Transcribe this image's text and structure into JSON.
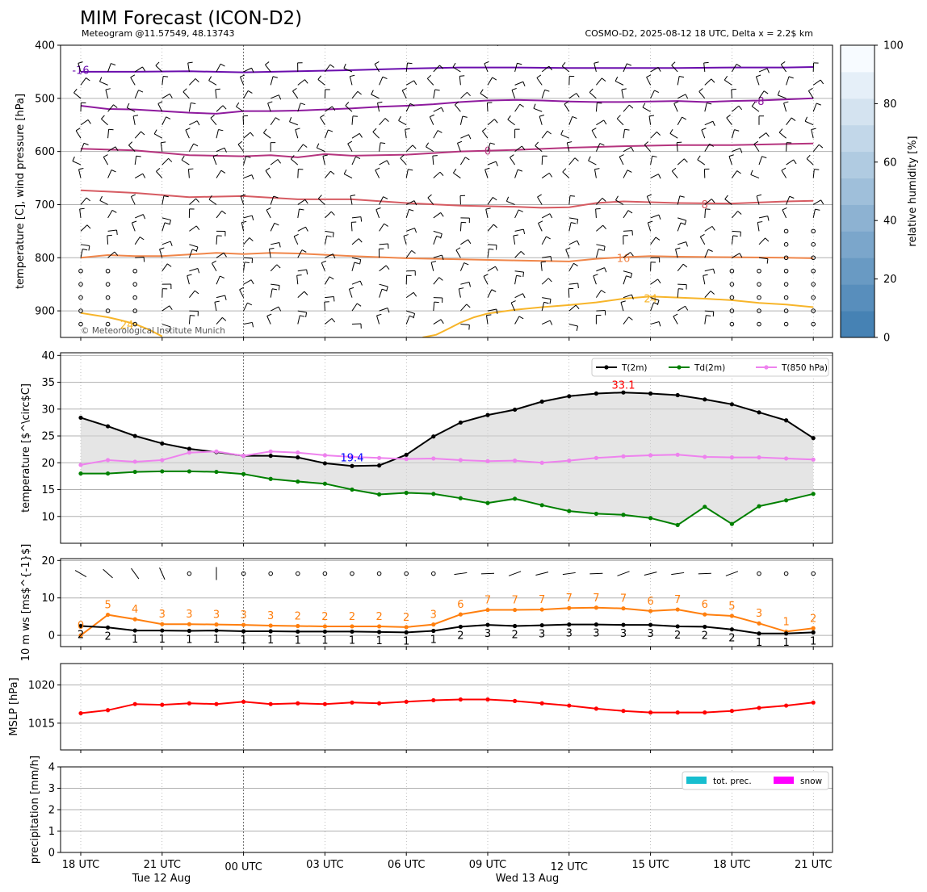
{
  "header": {
    "title": "MIM Forecast (ICON-D2)",
    "subtitle_left": "Meteogram @11.57549, 48.13743",
    "subtitle_right": "COSMO-D2, 2025-08-12 18 UTC, Delta x = 2.2$ km",
    "copyright": "© Meteorological Institute Munich"
  },
  "time_axis": {
    "tick_labels": [
      "18 UTC",
      "21 UTC",
      "00 UTC",
      "03 UTC",
      "06 UTC",
      "09 UTC",
      "12 UTC",
      "15 UTC",
      "18 UTC",
      "21 UTC"
    ],
    "day_labels": [
      "Tue 12 Aug",
      "Wed 13 Aug"
    ]
  },
  "chart_data": [
    {
      "type": "line",
      "name": "upper-air",
      "ylabel": "temperature [C], wind pressure [hPa]",
      "y_axis": "pressure, inverted",
      "ylim": [
        950,
        400
      ],
      "yticks": [
        "400",
        "500",
        "600",
        "700",
        "800",
        "900"
      ],
      "grid": "horizontal",
      "isotherm_labels": [
        {
          "text": "-16",
          "x": 0,
          "p": 446
        },
        {
          "text": "-8",
          "x": 25,
          "p": 505
        },
        {
          "text": "0",
          "x": 15,
          "p": 598
        },
        {
          "text": "8",
          "x": 23,
          "p": 699
        },
        {
          "text": "16",
          "x": 20,
          "p": 800
        },
        {
          "text": "24",
          "x": 21,
          "p": 876
        },
        {
          "text": "24",
          "x": 1.7,
          "p": 926
        }
      ],
      "isotherms": [
        {
          "temp": -16,
          "color": "#6a0dad",
          "x": [
            0,
            2,
            4,
            6,
            8,
            10,
            12,
            14,
            16,
            18,
            20,
            22,
            24,
            26,
            27
          ],
          "p": [
            450,
            450,
            449,
            451,
            449,
            447,
            444,
            442,
            442,
            443,
            443,
            443,
            442,
            442,
            441
          ]
        },
        {
          "temp": -8,
          "color": "#8e1a9e",
          "x": [
            0,
            1,
            2,
            3,
            4,
            5,
            6,
            7,
            8,
            9,
            10,
            11,
            12,
            13,
            14,
            15,
            16,
            17,
            18,
            19,
            20,
            21,
            22,
            23,
            24,
            25,
            26,
            27
          ],
          "p": [
            514,
            520,
            521,
            524,
            527,
            529,
            524,
            524,
            523,
            521,
            519,
            516,
            514,
            511,
            507,
            504,
            503,
            504,
            506,
            507,
            507,
            506,
            505,
            507,
            505,
            504,
            502,
            500
          ]
        },
        {
          "temp": 0,
          "color": "#b5347e",
          "x": [
            0,
            2,
            4,
            6,
            7,
            8,
            9,
            10,
            12,
            14,
            16,
            18,
            20,
            22,
            24,
            26,
            27
          ],
          "p": [
            595,
            598,
            607,
            609,
            607,
            611,
            605,
            608,
            606,
            600,
            597,
            593,
            590,
            588,
            588,
            586,
            585
          ]
        },
        {
          "temp": 8,
          "color": "#d65b62",
          "x": [
            0,
            2,
            4,
            6,
            8,
            10,
            12,
            14,
            16,
            17,
            18,
            19,
            20,
            22,
            24,
            26,
            27
          ],
          "p": [
            673,
            678,
            686,
            684,
            690,
            690,
            697,
            702,
            704,
            706,
            705,
            697,
            694,
            697,
            698,
            694,
            693
          ]
        },
        {
          "temp": 16,
          "color": "#f0864a",
          "x": [
            0,
            1,
            2,
            3,
            4,
            5,
            6,
            7,
            8,
            10,
            12,
            14,
            16,
            17,
            18,
            19,
            20,
            21,
            22,
            24,
            26,
            27
          ],
          "p": [
            800,
            795,
            797,
            797,
            794,
            791,
            793,
            791,
            792,
            797,
            801,
            803,
            805,
            806,
            807,
            802,
            799,
            797,
            798,
            799,
            800,
            801
          ]
        },
        {
          "temp": 24,
          "color": "#f7b52a",
          "x": [
            0,
            0.5,
            1,
            1.5,
            2,
            2.5,
            3
          ],
          "p": [
            904,
            908,
            912,
            918,
            925,
            935,
            948
          ]
        },
        {
          "temp": 24,
          "color": "#f7b52a",
          "x": [
            12.6,
            13.1,
            13.5,
            14,
            14.5,
            15,
            16,
            17,
            18,
            19,
            20,
            21,
            22,
            23,
            24,
            25,
            26,
            27
          ],
          "p": [
            950,
            945,
            935,
            922,
            912,
            905,
            898,
            893,
            889,
            884,
            877,
            873,
            875,
            877,
            880,
            885,
            888,
            893
          ]
        }
      ]
    },
    {
      "type": "line",
      "name": "temperature",
      "ylabel": "temperature [$^\\circ$C]",
      "ylim": [
        5,
        40.5
      ],
      "yticks": [
        "10",
        "15",
        "20",
        "25",
        "30",
        "35",
        "40"
      ],
      "grid": "horizontal",
      "legend": "upper-right",
      "legend_entries": [
        "T(2m)",
        "Td(2m)",
        "T(850 hPa)"
      ],
      "x": [
        0,
        1,
        2,
        3,
        4,
        5,
        6,
        7,
        8,
        9,
        10,
        11,
        12,
        13,
        14,
        15,
        16,
        17,
        18,
        19,
        20,
        21,
        22,
        23,
        24,
        25,
        26,
        27
      ],
      "series": [
        {
          "name": "T(2m)",
          "color": "#000000",
          "values": [
            28.4,
            26.8,
            25.0,
            23.6,
            22.6,
            22.0,
            21.3,
            21.3,
            21.0,
            19.9,
            19.4,
            19.5,
            21.5,
            24.9,
            27.5,
            28.9,
            29.9,
            31.4,
            32.4,
            32.9,
            33.1,
            32.9,
            32.6,
            31.8,
            30.9,
            29.4,
            27.9,
            24.6
          ]
        },
        {
          "name": "Td(2m)",
          "color": "#008000",
          "values": [
            18.0,
            18.0,
            18.3,
            18.4,
            18.4,
            18.3,
            17.9,
            17.0,
            16.5,
            16.1,
            15.0,
            14.1,
            14.4,
            14.2,
            13.4,
            12.5,
            13.3,
            12.1,
            11.0,
            10.5,
            10.3,
            9.7,
            8.4,
            11.8,
            8.6,
            11.9,
            13.0,
            14.2
          ]
        },
        {
          "name": "T(850 hPa)",
          "color": "#ee82ee",
          "values": [
            19.6,
            20.5,
            20.2,
            20.5,
            21.9,
            22.1,
            21.3,
            22.1,
            21.9,
            21.4,
            21.1,
            20.9,
            20.7,
            20.8,
            20.5,
            20.3,
            20.4,
            20.0,
            20.4,
            20.9,
            21.2,
            21.4,
            21.5,
            21.1,
            21.0,
            21.0,
            20.8,
            20.6
          ]
        }
      ],
      "annotations": [
        {
          "text": "33.1",
          "x": 20,
          "y": 34.4,
          "color": "#ff0000"
        },
        {
          "text": "19.4",
          "x": 10,
          "y": 20.9,
          "color": "#0000ff"
        }
      ]
    },
    {
      "type": "line",
      "name": "wind",
      "ylabel": "10 m ws [ms$^{-1}$]",
      "ylim": [
        -3,
        20.5
      ],
      "yticks": [
        "0",
        "10",
        "20"
      ],
      "grid": "horizontal",
      "x": [
        0,
        1,
        2,
        3,
        4,
        5,
        6,
        7,
        8,
        9,
        10,
        11,
        12,
        13,
        14,
        15,
        16,
        17,
        18,
        19,
        20,
        21,
        22,
        23,
        24,
        25,
        26,
        27
      ],
      "series": [
        {
          "name": "gust",
          "color": "#ff7f0e",
          "values": [
            0,
            5.5,
            4.3,
            3.0,
            3.0,
            2.9,
            2.8,
            2.6,
            2.5,
            2.4,
            2.4,
            2.4,
            2.2,
            2.9,
            5.6,
            6.8,
            6.8,
            6.9,
            7.3,
            7.4,
            7.2,
            6.5,
            6.9,
            5.6,
            5.2,
            3.2,
            1.0,
            1.9
          ]
        },
        {
          "name": "mean",
          "color": "#000000",
          "values": [
            2.5,
            2.1,
            1.3,
            1.3,
            1.2,
            1.3,
            1.1,
            1.1,
            1.0,
            1.0,
            1.0,
            0.9,
            0.8,
            1.2,
            2.3,
            2.8,
            2.5,
            2.7,
            2.9,
            2.9,
            2.8,
            2.8,
            2.4,
            2.3,
            1.6,
            0.5,
            0.5,
            0.8
          ]
        }
      ],
      "gust_labels": [
        "0",
        "5",
        "4",
        "3",
        "3",
        "3",
        "3",
        "3",
        "2",
        "2",
        "2",
        "2",
        "2",
        "3",
        "6",
        "7",
        "7",
        "7",
        "7",
        "7",
        "7",
        "6",
        "7",
        "6",
        "5",
        "3",
        "1",
        "2"
      ],
      "mean_labels": [
        "2",
        "2",
        "1",
        "1",
        "1",
        "1",
        "1",
        "1",
        "1",
        "1",
        "1",
        "1",
        "1",
        "1",
        "2",
        "3",
        "2",
        "3",
        "3",
        "3",
        "3",
        "3",
        "2",
        "2",
        "2",
        "1",
        "1",
        "1"
      ]
    },
    {
      "type": "line",
      "name": "mslp",
      "ylabel": "MSLP [hPa]",
      "ylim": [
        1011.5,
        1022.8
      ],
      "yticks": [
        "1015",
        "1020"
      ],
      "grid": "horizontal",
      "x": [
        0,
        1,
        2,
        3,
        4,
        5,
        6,
        7,
        8,
        9,
        10,
        11,
        12,
        13,
        14,
        15,
        16,
        17,
        18,
        19,
        20,
        21,
        22,
        23,
        24,
        25,
        26,
        27
      ],
      "series": [
        {
          "name": "MSLP",
          "color": "#ff0000",
          "values": [
            1016.3,
            1016.7,
            1017.5,
            1017.4,
            1017.6,
            1017.5,
            1017.8,
            1017.5,
            1017.6,
            1017.5,
            1017.7,
            1017.6,
            1017.8,
            1018.0,
            1018.1,
            1018.1,
            1017.9,
            1017.6,
            1017.3,
            1016.9,
            1016.6,
            1016.4,
            1016.4,
            1016.4,
            1016.6,
            1017.0,
            1017.3,
            1017.7
          ]
        }
      ]
    },
    {
      "type": "bar",
      "name": "precipitation",
      "ylabel": "precipitation [mm/h]",
      "ylim": [
        0,
        4
      ],
      "yticks": [
        "0",
        "1",
        "2",
        "3",
        "4"
      ],
      "grid": "horizontal",
      "legend": "upper-right",
      "legend_entries": [
        "tot. prec.",
        "snow"
      ],
      "series": [
        {
          "name": "tot. prec.",
          "color": "#17becf",
          "values": []
        },
        {
          "name": "snow",
          "color": "#ff00ff",
          "values": []
        }
      ]
    }
  ],
  "colorbar": {
    "label": "relative humidity [%]",
    "range": [
      0,
      100
    ],
    "ticks": [
      "0",
      "20",
      "40",
      "60",
      "80",
      "100"
    ]
  }
}
